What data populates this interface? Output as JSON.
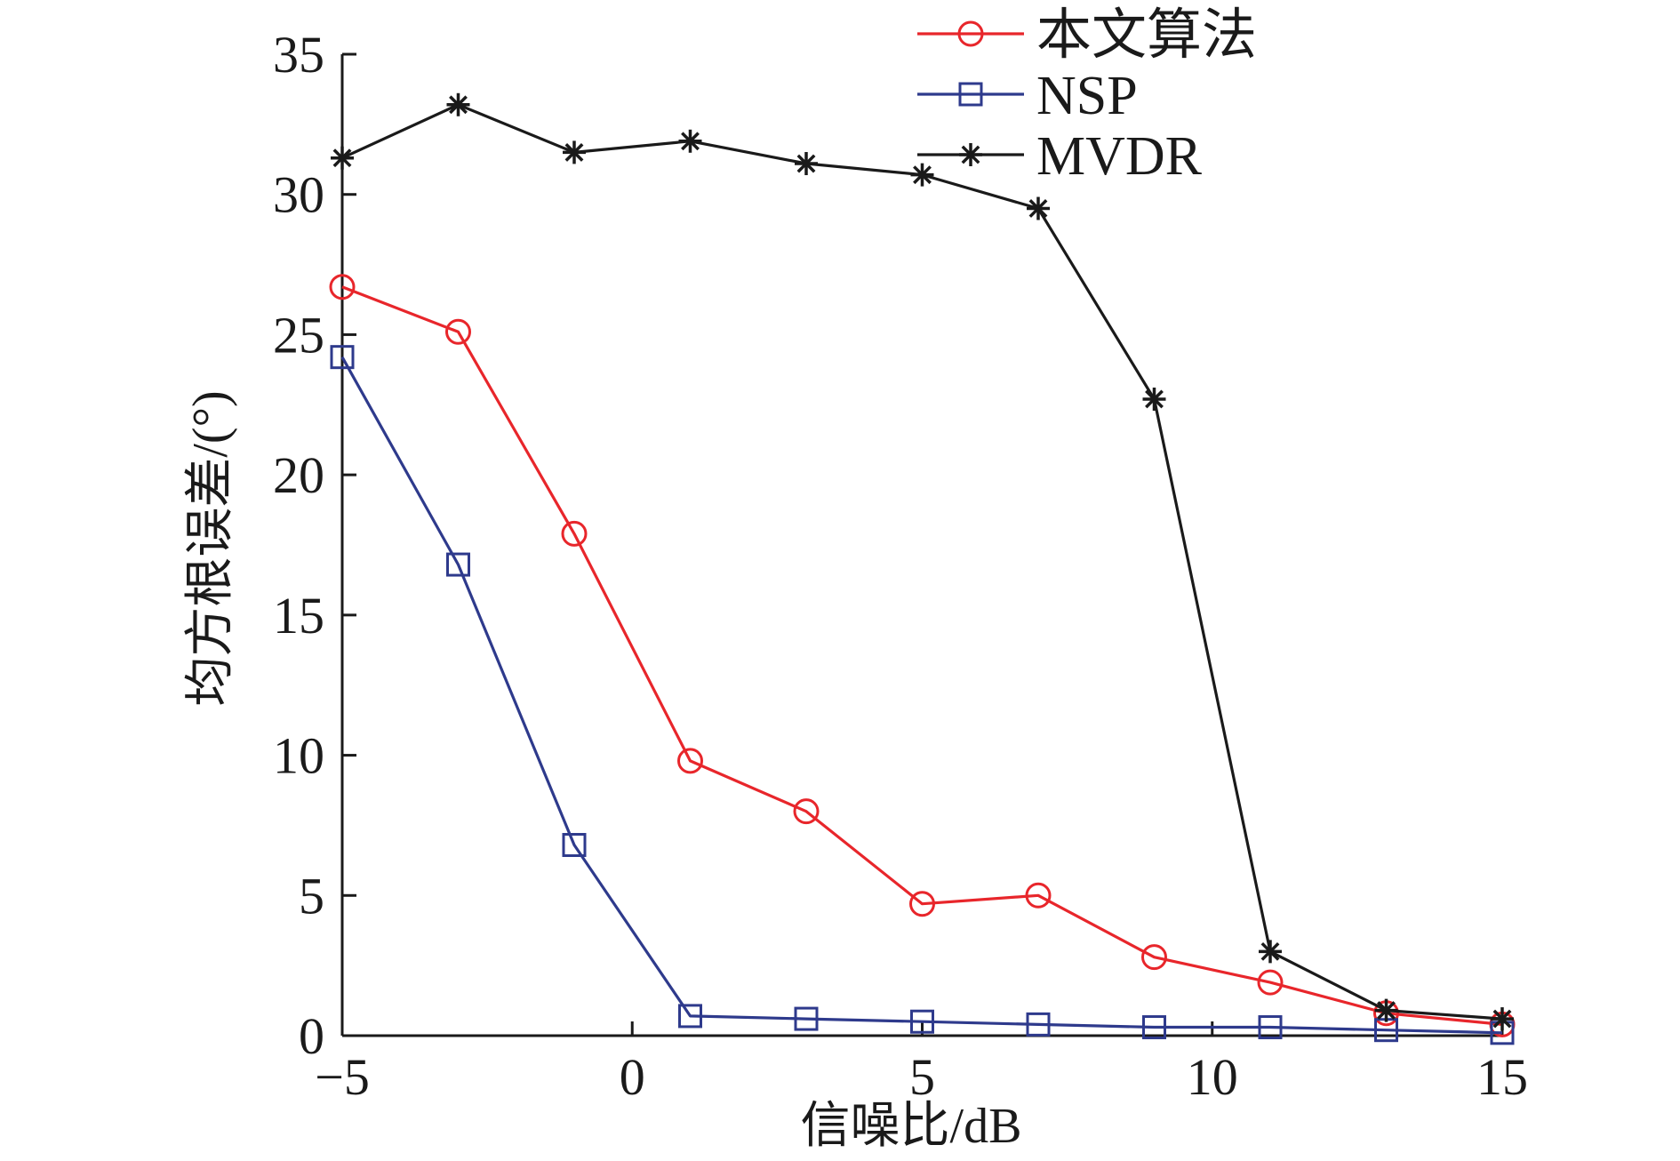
{
  "chart_data": {
    "type": "line",
    "title": "",
    "xlabel": "信噪比/dB",
    "ylabel": "均方根误差/(°)",
    "xlim": [
      -5,
      15
    ],
    "ylim": [
      0,
      35
    ],
    "xticks": [
      -5,
      0,
      5,
      10,
      15
    ],
    "yticks": [
      0,
      5,
      10,
      15,
      20,
      25,
      30,
      35
    ],
    "xtick_labels": [
      "−5",
      "0",
      "5",
      "10",
      "15"
    ],
    "ytick_labels": [
      "0",
      "5",
      "10",
      "15",
      "20",
      "25",
      "30",
      "35"
    ],
    "grid": false,
    "legend_position": "top-right",
    "x": [
      -5,
      -3,
      -1,
      1,
      3,
      5,
      7,
      9,
      11,
      13,
      15
    ],
    "series": [
      {
        "name": "本文算法",
        "color": "#e8262b",
        "marker": "circle",
        "values": [
          26.7,
          25.1,
          17.9,
          9.8,
          8.0,
          4.7,
          5.0,
          2.8,
          1.9,
          0.8,
          0.4
        ]
      },
      {
        "name": "NSP",
        "color": "#2e3a8c",
        "marker": "square",
        "values": [
          24.2,
          16.8,
          6.8,
          0.7,
          0.6,
          0.5,
          0.4,
          0.3,
          0.3,
          0.2,
          0.1
        ]
      },
      {
        "name": "MVDR",
        "color": "#1a1a1a",
        "marker": "star",
        "values": [
          31.3,
          33.2,
          31.5,
          31.9,
          31.1,
          30.7,
          29.5,
          22.7,
          3.0,
          0.9,
          0.6
        ]
      }
    ]
  }
}
